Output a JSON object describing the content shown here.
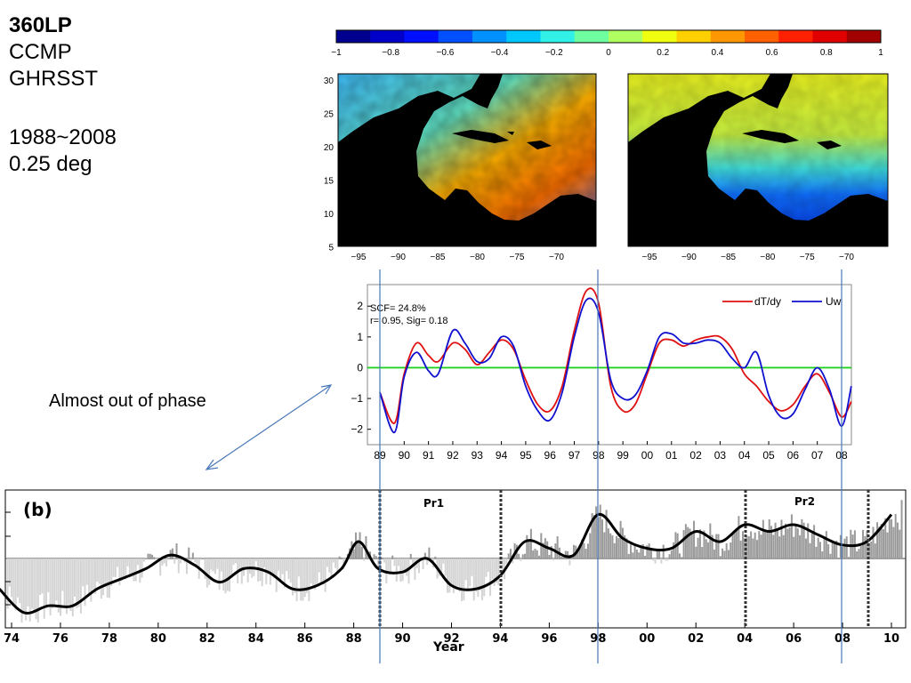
{
  "header": {
    "lines": [
      "360LP",
      "CCMP",
      "GHRSST"
    ],
    "period": "1988~2008",
    "resolution": "0.25 deg"
  },
  "annotation": "Almost out of phase",
  "chart_data": [
    {
      "type": "colorbar",
      "ticks": [
        "−1",
        "−0.8",
        "−0.6",
        "−0.4",
        "−0.2",
        "0",
        "0.2",
        "0.4",
        "0.6",
        "0.8",
        "1"
      ],
      "range": [
        -1,
        1
      ],
      "colors": [
        "#00008f",
        "#0000c8",
        "#0010ff",
        "#0050ff",
        "#0090ff",
        "#00c8ff",
        "#30f0e8",
        "#70ffa0",
        "#b0ff60",
        "#f0ff10",
        "#ffd000",
        "#ff9800",
        "#ff6000",
        "#ff2000",
        "#e00000",
        "#a00000"
      ]
    },
    {
      "type": "heatmap",
      "label": "dT/dy",
      "xticks": [
        "−95",
        "−90",
        "−85",
        "−80",
        "−75",
        "−70"
      ],
      "yticks": [
        "30",
        "25",
        "20",
        "15",
        "10",
        "5"
      ]
    },
    {
      "type": "heatmap",
      "label": "Uw",
      "xticks": [
        "−95",
        "−90",
        "−85",
        "−80",
        "−75",
        "−70"
      ]
    },
    {
      "type": "line",
      "stats": [
        "SCF= 24.8%",
        "r= 0.95, Sig= 0.18"
      ],
      "ylim": [
        -2.5,
        2.7
      ],
      "yticks": [
        "2",
        "1",
        "0",
        "−1",
        "−2"
      ],
      "xticks": [
        "89",
        "90",
        "91",
        "92",
        "93",
        "94",
        "95",
        "96",
        "97",
        "98",
        "99",
        "00",
        "01",
        "02",
        "03",
        "04",
        "05",
        "06",
        "07",
        "08"
      ],
      "x": [
        89.0,
        89.6,
        90.0,
        90.5,
        91.0,
        91.4,
        92.0,
        92.5,
        93.0,
        93.5,
        94.0,
        94.5,
        95.0,
        95.5,
        96.0,
        96.5,
        97.0,
        97.5,
        98.0,
        98.5,
        99.0,
        99.5,
        100.0,
        100.5,
        101.0,
        101.5,
        102.0,
        102.5,
        103.0,
        103.5,
        104.0,
        104.5,
        105.0,
        105.5,
        106.0,
        106.5,
        107.0,
        107.5,
        108.0,
        108.4
      ],
      "series": [
        {
          "name": "dT/dy",
          "color": "#e01010",
          "values": [
            -0.8,
            -1.8,
            -0.2,
            0.8,
            0.4,
            0.2,
            0.8,
            0.6,
            0.1,
            0.5,
            0.9,
            0.6,
            -0.4,
            -1.2,
            -1.4,
            -0.6,
            1.2,
            2.5,
            2.1,
            -0.6,
            -1.4,
            -1.2,
            -0.2,
            0.8,
            0.9,
            0.7,
            0.9,
            1.0,
            1.0,
            0.6,
            -0.2,
            -0.6,
            -1.1,
            -1.4,
            -1.2,
            -0.6,
            -0.2,
            -0.8,
            -1.6,
            -1.1
          ]
        },
        {
          "name": "Uw",
          "color": "#1010d0",
          "values": [
            -0.8,
            -2.1,
            -0.3,
            0.5,
            -0.1,
            -0.2,
            1.2,
            0.8,
            0.2,
            0.3,
            1.0,
            0.7,
            -0.6,
            -1.4,
            -1.7,
            -0.8,
            1.0,
            2.2,
            1.8,
            -0.4,
            -1.0,
            -0.9,
            -0.1,
            1.0,
            1.1,
            0.8,
            0.8,
            0.9,
            0.8,
            0.3,
            0.0,
            0.5,
            -0.9,
            -1.6,
            -1.5,
            -0.7,
            0.0,
            -0.7,
            -1.9,
            -0.6
          ]
        }
      ]
    },
    {
      "type": "bar",
      "panel_label": "(b)",
      "xlabel": "Year",
      "xticks": [
        "74",
        "76",
        "78",
        "80",
        "82",
        "84",
        "86",
        "88",
        "90",
        "92",
        "94",
        "96",
        "98",
        "00",
        "02",
        "04",
        "06",
        "08",
        "10"
      ],
      "period_labels": [
        "Pr1",
        "Pr2"
      ],
      "smooth": {
        "x": [
          1973.5,
          1974.5,
          1975.5,
          1976.5,
          1977.5,
          1978.5,
          1979.5,
          1980.5,
          1981.5,
          1982.5,
          1983.5,
          1984.5,
          1985.5,
          1986.5,
          1987.5,
          1988.2,
          1989.0,
          1990.0,
          1991.0,
          1992.0,
          1993.0,
          1994.0,
          1995.0,
          1996.0,
          1997.0,
          1998.0,
          1999.0,
          2000.0,
          2001.0,
          2002.0,
          2003.0,
          2004.0,
          2005.0,
          2006.0,
          2007.0,
          2008.0,
          2009.0,
          2010.0
        ],
        "values": [
          -0.9,
          -1.6,
          -1.4,
          -1.4,
          -0.9,
          -0.6,
          -0.3,
          0.1,
          -0.2,
          -0.7,
          -0.3,
          -0.4,
          -0.9,
          -0.8,
          -0.3,
          0.5,
          -0.3,
          -0.4,
          0.0,
          -0.8,
          -0.9,
          -0.5,
          0.5,
          0.3,
          0.1,
          1.3,
          0.6,
          0.3,
          0.3,
          0.8,
          0.5,
          1.0,
          0.8,
          1.0,
          0.7,
          0.4,
          0.5,
          1.3
        ]
      }
    }
  ]
}
